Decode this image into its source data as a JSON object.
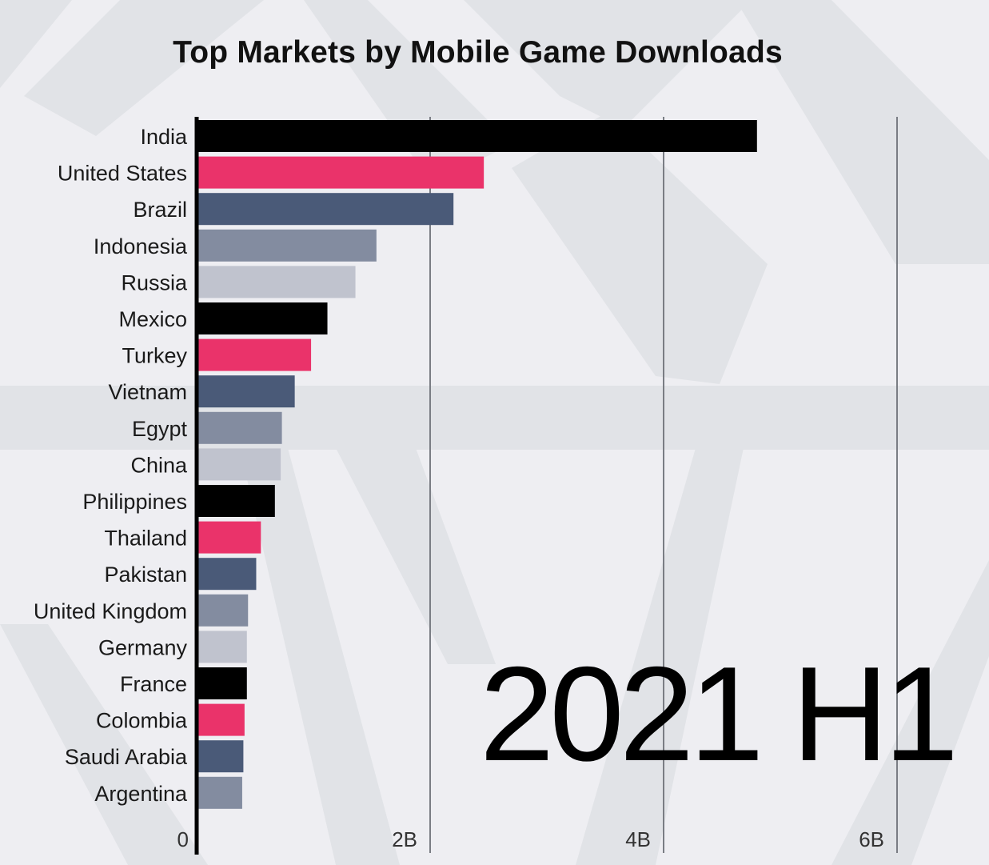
{
  "chart_data": {
    "type": "bar",
    "orientation": "horizontal",
    "title": "Top Markets by Mobile Game Downloads",
    "period": "2021 H1",
    "categories": [
      "India",
      "United States",
      "Brazil",
      "Indonesia",
      "Russia",
      "Mexico",
      "Turkey",
      "Vietnam",
      "Egypt",
      "China",
      "Philippines",
      "Thailand",
      "Pakistan",
      "United Kingdom",
      "Germany",
      "France",
      "Colombia",
      "Saudi Arabia",
      "Argentina"
    ],
    "values": [
      4.8,
      2.46,
      2.2,
      1.54,
      1.36,
      1.12,
      0.98,
      0.84,
      0.73,
      0.72,
      0.67,
      0.55,
      0.51,
      0.44,
      0.43,
      0.43,
      0.41,
      0.4,
      0.39
    ],
    "value_unit": "B",
    "x_ticks": [
      {
        "value": 0,
        "label": "0"
      },
      {
        "value": 2,
        "label": "2B"
      },
      {
        "value": 4,
        "label": "4B"
      },
      {
        "value": 6,
        "label": "6B"
      }
    ],
    "xlim": [
      0,
      6.4
    ],
    "grid": true,
    "color_cycle": [
      "#000000",
      "#ea336a",
      "#4a5a78",
      "#838ca0",
      "#c0c3ce"
    ]
  }
}
